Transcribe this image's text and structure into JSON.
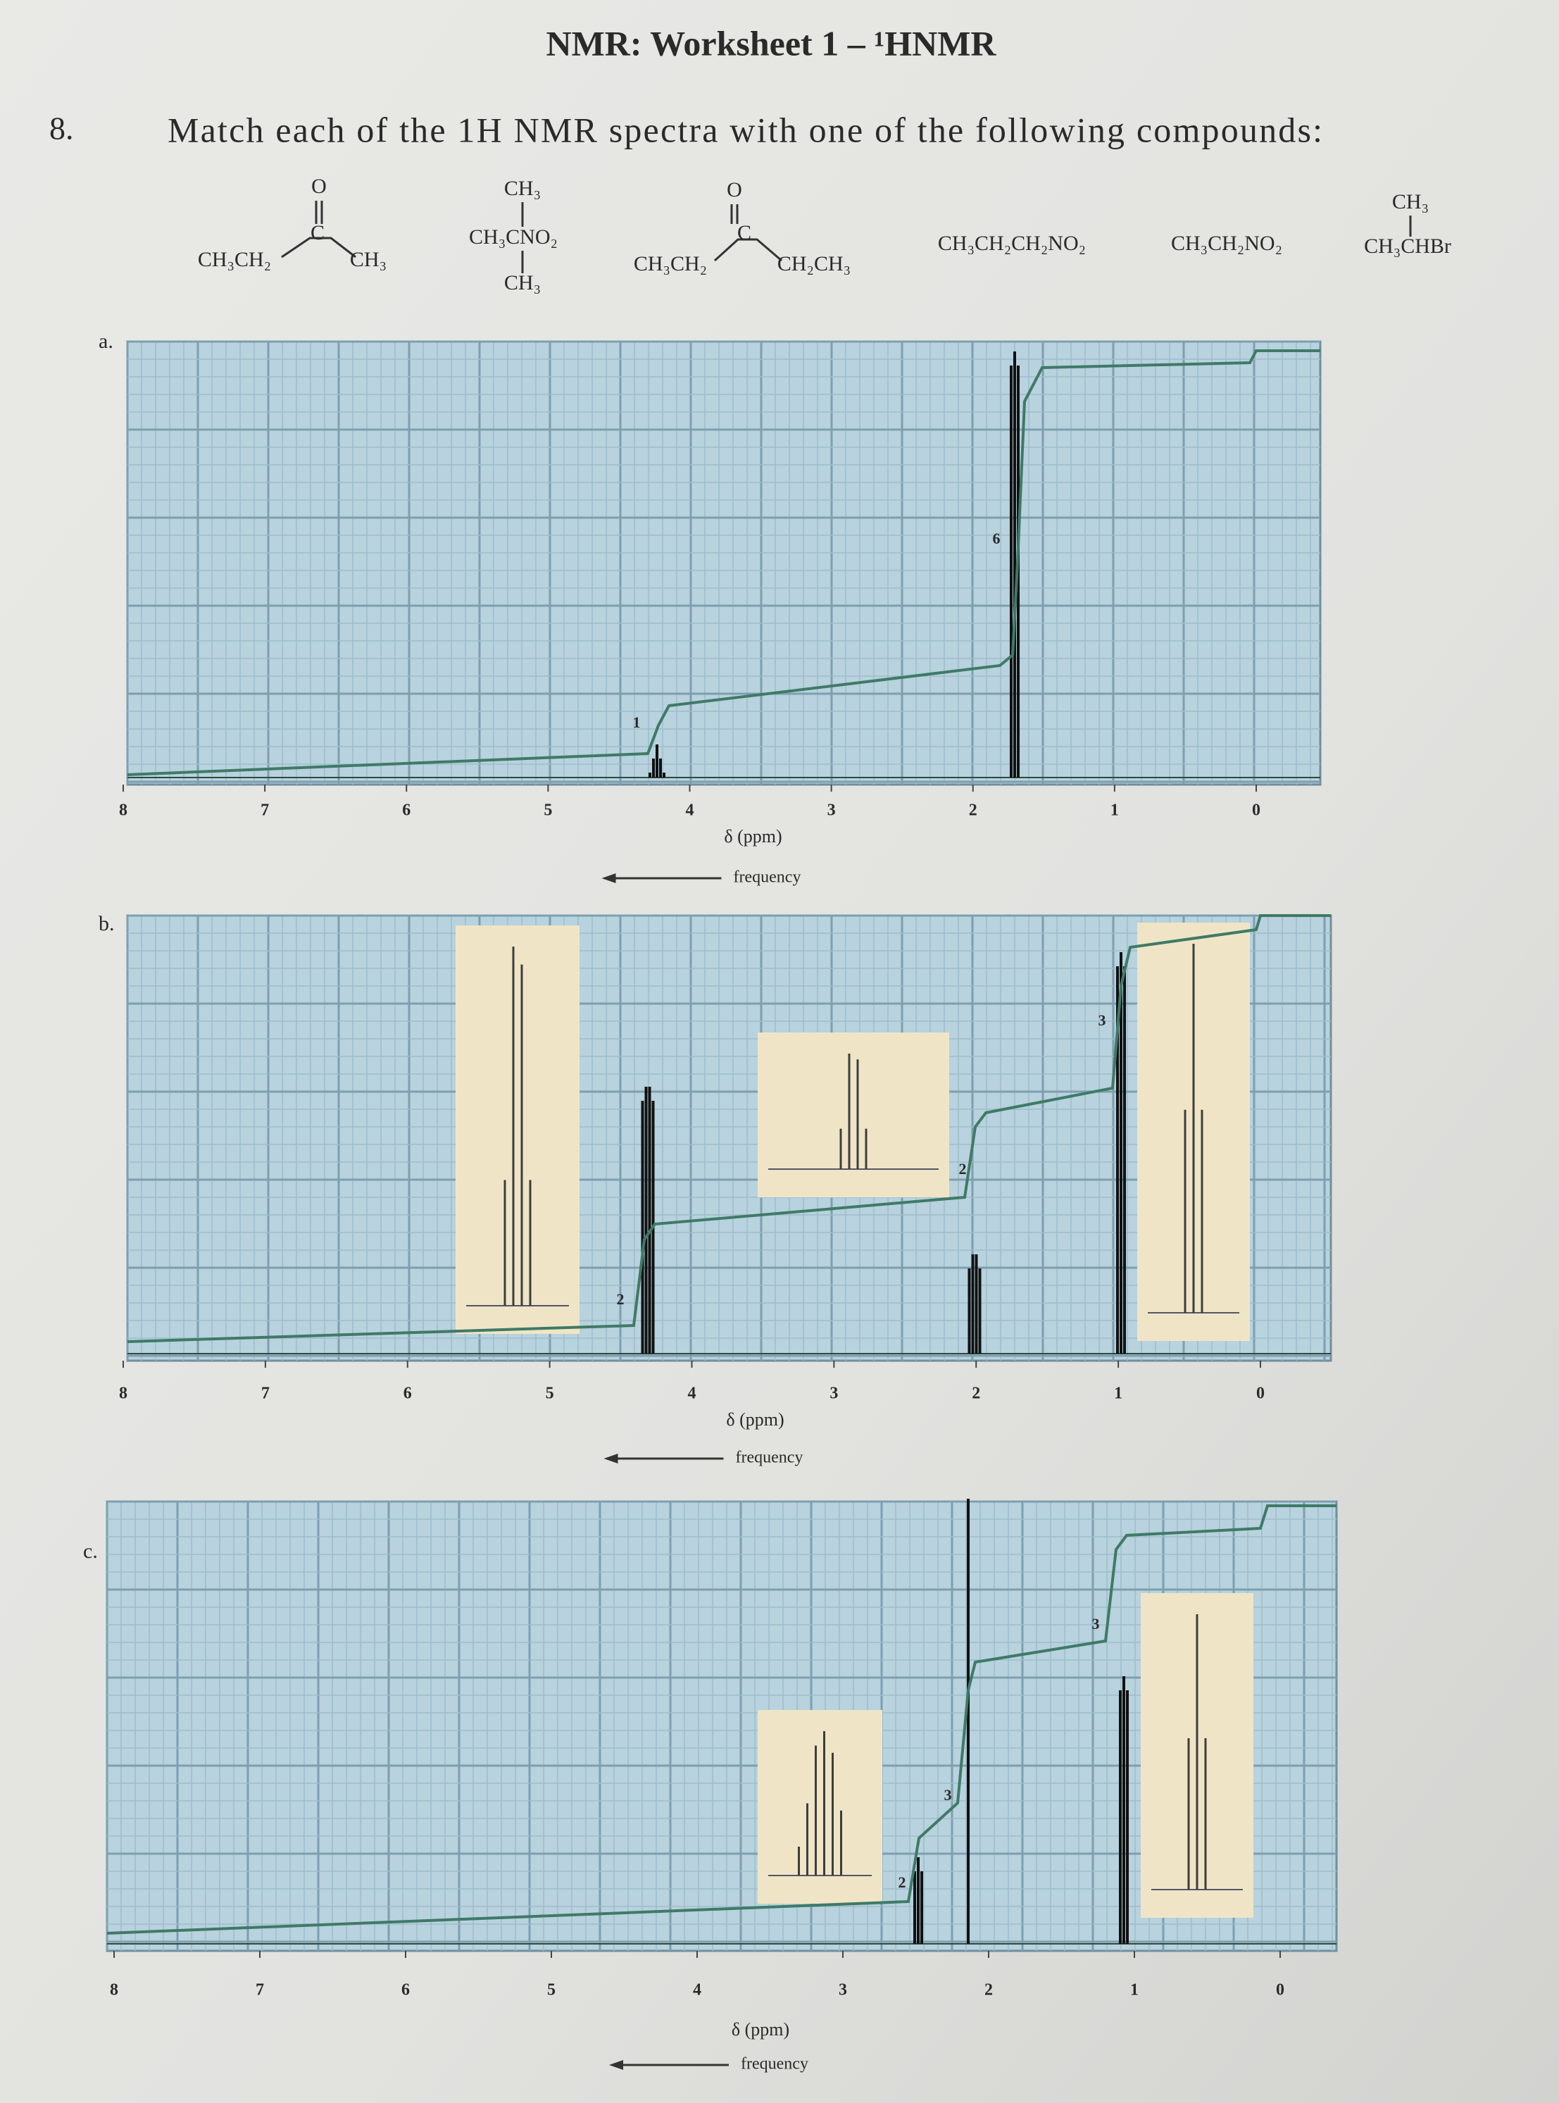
{
  "header": {
    "title": "NMR: Worksheet 1 – ¹HNMR"
  },
  "question": {
    "number": "8.",
    "text": "Match each of the 1H NMR spectra with one of the following compounds:"
  },
  "compounds": [
    {
      "parts": [
        "O",
        "C",
        "CH₃CH₂",
        "CH₃"
      ]
    },
    {
      "parts": [
        "CH₃",
        "CH₃CNO₂",
        "CH₃"
      ]
    },
    {
      "parts": [
        "O",
        "C",
        "CH₃CH₂",
        "CH₂CH₃"
      ]
    },
    {
      "parts": [
        "CH₃CH₂CH₂NO₂"
      ]
    },
    {
      "parts": [
        "CH₃CH₂NO₂"
      ]
    },
    {
      "parts": [
        "CH₃",
        "CH₃CHBr"
      ]
    }
  ],
  "spectra": [
    {
      "label": "a.",
      "ticks": [
        "8",
        "7",
        "6",
        "5",
        "4",
        "3",
        "2",
        "1",
        "0"
      ],
      "axis_label": "δ (ppm)",
      "arrow_label": "frequency",
      "integrations": [
        "1",
        "6"
      ]
    },
    {
      "label": "b.",
      "ticks": [
        "8",
        "7",
        "6",
        "5",
        "4",
        "3",
        "2",
        "1",
        "0"
      ],
      "axis_label": "δ (ppm)",
      "arrow_label": "frequency",
      "integrations": [
        "2",
        "2",
        "3"
      ]
    },
    {
      "label": "c.",
      "ticks": [
        "8",
        "7",
        "6",
        "5",
        "4",
        "3",
        "2",
        "1",
        "0"
      ],
      "axis_label": "δ (ppm)",
      "arrow_label": "frequency",
      "integrations": [
        "2",
        "3",
        "3"
      ]
    }
  ]
}
